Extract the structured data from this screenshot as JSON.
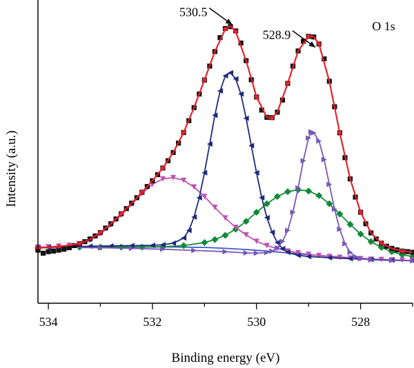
{
  "chart_data": {
    "type": "line",
    "title": "",
    "panel_label": "O 1s",
    "xlabel": "Binding energy (eV)",
    "ylabel": "Intensity (a.u.)",
    "x_reversed": true,
    "xlim": [
      534.2,
      527.0
    ],
    "ylim": [
      0,
      1
    ],
    "x_ticks": [
      534,
      532,
      530,
      528
    ],
    "x_tick_labels": [
      "534",
      "532",
      "530",
      "528"
    ],
    "grid": false,
    "annotations": [
      {
        "text": "530.5",
        "x": 530.55,
        "y": 0.935
      },
      {
        "text": "528.9",
        "x": 528.95,
        "y": 0.86
      }
    ],
    "colors": {
      "raw": "#111111",
      "fit": "#e8202a",
      "peak_530_5": "#1d2a7a",
      "peak_528_9": "#7757b7",
      "peak_531_6": "#c04fb4",
      "peak_529_2": "#0e8a36",
      "background": "#3a58c6"
    },
    "series": [
      {
        "key": "raw",
        "marker": "square",
        "points": [
          [
            534.2,
            0.175
          ],
          [
            534.1,
            0.165
          ],
          [
            534.0,
            0.17
          ],
          [
            533.9,
            0.172
          ],
          [
            533.8,
            0.175
          ],
          [
            533.7,
            0.178
          ],
          [
            533.6,
            0.183
          ],
          [
            533.5,
            0.19
          ],
          [
            533.4,
            0.196
          ],
          [
            533.3,
            0.203
          ],
          [
            533.2,
            0.212
          ],
          [
            533.1,
            0.222
          ],
          [
            533.0,
            0.233
          ],
          [
            532.9,
            0.248
          ],
          [
            532.8,
            0.262
          ],
          [
            532.7,
            0.278
          ],
          [
            532.6,
            0.295
          ],
          [
            532.5,
            0.312
          ],
          [
            532.4,
            0.33
          ],
          [
            532.3,
            0.348
          ],
          [
            532.2,
            0.366
          ],
          [
            532.1,
            0.385
          ],
          [
            532.0,
            0.404
          ],
          [
            531.9,
            0.424
          ],
          [
            531.8,
            0.446
          ],
          [
            531.7,
            0.47
          ],
          [
            531.6,
            0.497
          ],
          [
            531.5,
            0.528
          ],
          [
            531.4,
            0.563
          ],
          [
            531.3,
            0.602
          ],
          [
            531.2,
            0.645
          ],
          [
            531.1,
            0.69
          ],
          [
            531.0,
            0.736
          ],
          [
            530.9,
            0.782
          ],
          [
            530.8,
            0.83
          ],
          [
            530.7,
            0.876
          ],
          [
            530.6,
            0.906
          ],
          [
            530.5,
            0.912
          ],
          [
            530.4,
            0.898
          ],
          [
            530.3,
            0.858
          ],
          [
            530.2,
            0.8
          ],
          [
            530.1,
            0.737
          ],
          [
            530.0,
            0.68
          ],
          [
            529.9,
            0.637
          ],
          [
            529.8,
            0.613
          ],
          [
            529.7,
            0.612
          ],
          [
            529.6,
            0.63
          ],
          [
            529.5,
            0.67
          ],
          [
            529.4,
            0.725
          ],
          [
            529.3,
            0.782
          ],
          [
            529.2,
            0.832
          ],
          [
            529.1,
            0.864
          ],
          [
            529.0,
            0.88
          ],
          [
            528.9,
            0.878
          ],
          [
            528.8,
            0.855
          ],
          [
            528.7,
            0.806
          ],
          [
            528.6,
            0.732
          ],
          [
            528.5,
            0.648
          ],
          [
            528.4,
            0.562
          ],
          [
            528.3,
            0.48
          ],
          [
            528.2,
            0.41
          ],
          [
            528.1,
            0.35
          ],
          [
            528.0,
            0.3
          ],
          [
            527.9,
            0.262
          ],
          [
            527.8,
            0.232
          ],
          [
            527.7,
            0.212
          ],
          [
            527.6,
            0.198
          ],
          [
            527.5,
            0.188
          ],
          [
            527.4,
            0.181
          ],
          [
            527.3,
            0.176
          ],
          [
            527.2,
            0.172
          ],
          [
            527.1,
            0.17
          ],
          [
            527.0,
            0.168
          ]
        ]
      },
      {
        "key": "fit",
        "marker": "circle",
        "points": [
          [
            534.2,
            0.182
          ],
          [
            534.0,
            0.184
          ],
          [
            533.8,
            0.187
          ],
          [
            533.6,
            0.191
          ],
          [
            533.4,
            0.197
          ],
          [
            533.2,
            0.21
          ],
          [
            533.0,
            0.233
          ],
          [
            532.8,
            0.262
          ],
          [
            532.6,
            0.295
          ],
          [
            532.4,
            0.33
          ],
          [
            532.2,
            0.366
          ],
          [
            532.0,
            0.404
          ],
          [
            531.8,
            0.446
          ],
          [
            531.6,
            0.497
          ],
          [
            531.4,
            0.563
          ],
          [
            531.2,
            0.645
          ],
          [
            531.0,
            0.736
          ],
          [
            530.8,
            0.83
          ],
          [
            530.6,
            0.904
          ],
          [
            530.5,
            0.914
          ],
          [
            530.4,
            0.896
          ],
          [
            530.2,
            0.8
          ],
          [
            530.0,
            0.68
          ],
          [
            529.8,
            0.613
          ],
          [
            529.7,
            0.611
          ],
          [
            529.6,
            0.63
          ],
          [
            529.4,
            0.725
          ],
          [
            529.2,
            0.832
          ],
          [
            529.0,
            0.88
          ],
          [
            528.9,
            0.879
          ],
          [
            528.8,
            0.855
          ],
          [
            528.6,
            0.732
          ],
          [
            528.4,
            0.562
          ],
          [
            528.2,
            0.41
          ],
          [
            528.0,
            0.3
          ],
          [
            527.8,
            0.232
          ],
          [
            527.6,
            0.198
          ],
          [
            527.4,
            0.181
          ],
          [
            527.2,
            0.172
          ],
          [
            527.0,
            0.168
          ]
        ]
      },
      {
        "key": "peak_531_6",
        "marker": "triangle-down",
        "points": [
          [
            534.2,
            0.185
          ],
          [
            534.0,
            0.186
          ],
          [
            533.8,
            0.188
          ],
          [
            533.6,
            0.191
          ],
          [
            533.4,
            0.196
          ],
          [
            533.2,
            0.207
          ],
          [
            533.0,
            0.228
          ],
          [
            532.8,
            0.257
          ],
          [
            532.6,
            0.29
          ],
          [
            532.4,
            0.326
          ],
          [
            532.2,
            0.362
          ],
          [
            532.0,
            0.392
          ],
          [
            531.8,
            0.41
          ],
          [
            531.6,
            0.414
          ],
          [
            531.4,
            0.405
          ],
          [
            531.2,
            0.383
          ],
          [
            531.0,
            0.352
          ],
          [
            530.8,
            0.316
          ],
          [
            530.6,
            0.281
          ],
          [
            530.4,
            0.25
          ],
          [
            530.2,
            0.225
          ],
          [
            530.0,
            0.204
          ],
          [
            529.8,
            0.19
          ],
          [
            529.6,
            0.18
          ],
          [
            529.4,
            0.172
          ],
          [
            529.2,
            0.166
          ],
          [
            529.0,
            0.161
          ],
          [
            528.8,
            0.157
          ],
          [
            528.6,
            0.154
          ],
          [
            528.4,
            0.151
          ],
          [
            528.2,
            0.149
          ],
          [
            528.0,
            0.147
          ],
          [
            527.8,
            0.145
          ],
          [
            527.6,
            0.144
          ],
          [
            527.4,
            0.143
          ],
          [
            527.2,
            0.142
          ],
          [
            527.0,
            0.141
          ]
        ]
      },
      {
        "key": "peak_530_5",
        "marker": "triangle-left",
        "points": [
          [
            534.2,
            0.183
          ],
          [
            534.0,
            0.184
          ],
          [
            533.6,
            0.186
          ],
          [
            533.2,
            0.188
          ],
          [
            532.8,
            0.189
          ],
          [
            532.4,
            0.19
          ],
          [
            532.0,
            0.191
          ],
          [
            531.8,
            0.193
          ],
          [
            531.6,
            0.198
          ],
          [
            531.4,
            0.215
          ],
          [
            531.3,
            0.24
          ],
          [
            531.2,
            0.284
          ],
          [
            531.1,
            0.348
          ],
          [
            531.0,
            0.43
          ],
          [
            530.9,
            0.525
          ],
          [
            530.8,
            0.62
          ],
          [
            530.7,
            0.7
          ],
          [
            530.6,
            0.75
          ],
          [
            530.5,
            0.76
          ],
          [
            530.4,
            0.74
          ],
          [
            530.3,
            0.69
          ],
          [
            530.2,
            0.61
          ],
          [
            530.1,
            0.52
          ],
          [
            530.0,
            0.43
          ],
          [
            529.9,
            0.348
          ],
          [
            529.8,
            0.282
          ],
          [
            529.7,
            0.234
          ],
          [
            529.6,
            0.2
          ],
          [
            529.5,
            0.18
          ],
          [
            529.4,
            0.168
          ],
          [
            529.2,
            0.158
          ],
          [
            529.0,
            0.154
          ],
          [
            528.6,
            0.15
          ],
          [
            528.2,
            0.147
          ],
          [
            527.8,
            0.144
          ],
          [
            527.4,
            0.142
          ],
          [
            527.0,
            0.14
          ]
        ]
      },
      {
        "key": "peak_528_9",
        "marker": "triangle-right",
        "points": [
          [
            534.2,
            0.183
          ],
          [
            533.6,
            0.184
          ],
          [
            533.0,
            0.183
          ],
          [
            532.4,
            0.181
          ],
          [
            531.8,
            0.178
          ],
          [
            531.2,
            0.174
          ],
          [
            530.6,
            0.17
          ],
          [
            530.2,
            0.166
          ],
          [
            530.0,
            0.165
          ],
          [
            529.8,
            0.167
          ],
          [
            529.7,
            0.172
          ],
          [
            529.6,
            0.182
          ],
          [
            529.5,
            0.204
          ],
          [
            529.4,
            0.24
          ],
          [
            529.3,
            0.3
          ],
          [
            529.2,
            0.38
          ],
          [
            529.1,
            0.47
          ],
          [
            529.0,
            0.545
          ],
          [
            528.95,
            0.565
          ],
          [
            528.9,
            0.562
          ],
          [
            528.8,
            0.535
          ],
          [
            528.7,
            0.474
          ],
          [
            528.6,
            0.392
          ],
          [
            528.5,
            0.31
          ],
          [
            528.4,
            0.244
          ],
          [
            528.3,
            0.196
          ],
          [
            528.2,
            0.168
          ],
          [
            528.1,
            0.154
          ],
          [
            528.0,
            0.147
          ],
          [
            527.8,
            0.143
          ],
          [
            527.4,
            0.141
          ],
          [
            527.0,
            0.14
          ]
        ]
      },
      {
        "key": "peak_529_2",
        "marker": "diamond",
        "points": [
          [
            534.2,
            0.183
          ],
          [
            533.8,
            0.184
          ],
          [
            533.4,
            0.185
          ],
          [
            533.0,
            0.185
          ],
          [
            532.6,
            0.185
          ],
          [
            532.2,
            0.185
          ],
          [
            531.8,
            0.186
          ],
          [
            531.4,
            0.19
          ],
          [
            531.0,
            0.2
          ],
          [
            530.8,
            0.21
          ],
          [
            530.6,
            0.224
          ],
          [
            530.4,
            0.244
          ],
          [
            530.2,
            0.27
          ],
          [
            530.0,
            0.3
          ],
          [
            529.8,
            0.328
          ],
          [
            529.6,
            0.352
          ],
          [
            529.4,
            0.368
          ],
          [
            529.2,
            0.374
          ],
          [
            529.0,
            0.37
          ],
          [
            528.8,
            0.355
          ],
          [
            528.6,
            0.328
          ],
          [
            528.4,
            0.294
          ],
          [
            528.2,
            0.26
          ],
          [
            528.0,
            0.228
          ],
          [
            527.8,
            0.203
          ],
          [
            527.6,
            0.184
          ],
          [
            527.4,
            0.17
          ],
          [
            527.2,
            0.16
          ],
          [
            527.0,
            0.154
          ]
        ]
      },
      {
        "key": "background",
        "marker": "none",
        "points": [
          [
            534.2,
            0.183
          ],
          [
            533.6,
            0.184
          ],
          [
            533.0,
            0.185
          ],
          [
            532.6,
            0.186
          ],
          [
            532.2,
            0.186
          ],
          [
            531.8,
            0.186
          ],
          [
            531.4,
            0.185
          ],
          [
            531.0,
            0.184
          ],
          [
            530.6,
            0.181
          ],
          [
            530.2,
            0.177
          ],
          [
            529.8,
            0.172
          ],
          [
            529.4,
            0.166
          ],
          [
            529.0,
            0.16
          ],
          [
            528.6,
            0.155
          ],
          [
            528.2,
            0.15
          ],
          [
            527.8,
            0.146
          ],
          [
            527.4,
            0.143
          ],
          [
            527.0,
            0.14
          ]
        ]
      }
    ]
  }
}
